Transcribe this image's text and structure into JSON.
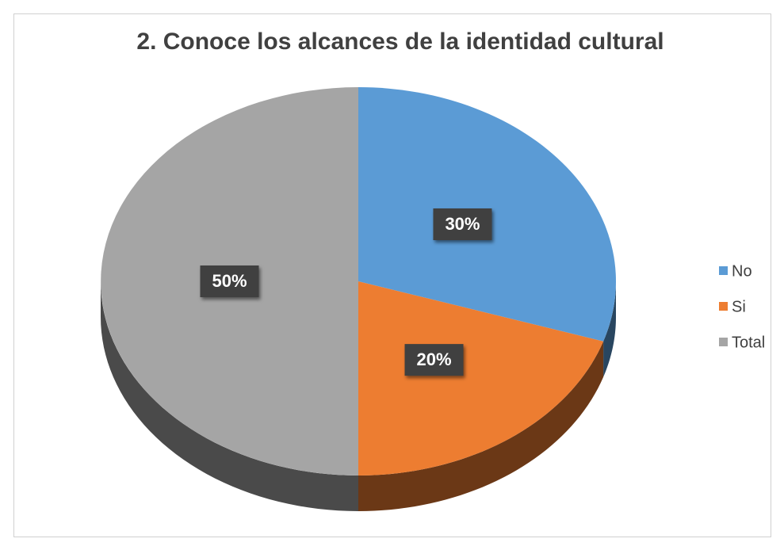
{
  "chart_data": {
    "type": "pie",
    "title": "2. Conoce los alcances de la identidad cultural",
    "categories": [
      "No",
      "Si",
      "Total"
    ],
    "values": [
      30,
      20,
      50
    ],
    "value_labels": [
      "30%",
      "20%",
      "50%"
    ],
    "colors": [
      "#5b9bd5",
      "#ed7d31",
      "#a5a5a5"
    ],
    "legend": "right"
  }
}
